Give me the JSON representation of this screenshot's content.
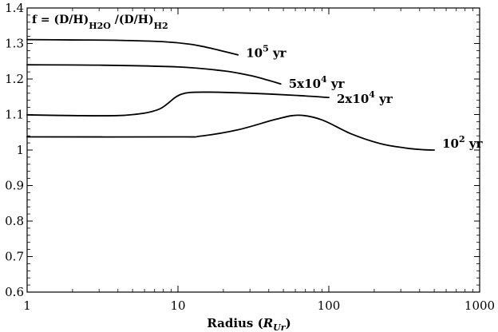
{
  "chart_data": {
    "type": "line",
    "title": "",
    "annotation": {
      "prefix": "f = (D/H)",
      "sub1": "H2O",
      "mid": " /(D/H)",
      "sub2": "H2"
    },
    "xlabel": {
      "text": "Radius (",
      "var": "R",
      "sub": "Ur",
      "close": ")"
    },
    "ylabel": "",
    "xscale": "log",
    "xlim": [
      1,
      1000
    ],
    "ylim": [
      0.6,
      1.4
    ],
    "xticks": [
      {
        "value": 1,
        "label": "1"
      },
      {
        "value": 10,
        "label": "10"
      },
      {
        "value": 100,
        "label": "100"
      },
      {
        "value": 1000,
        "label": "1000"
      }
    ],
    "yticks": [
      {
        "value": 0.6,
        "label": "0.6"
      },
      {
        "value": 0.7,
        "label": "0.7"
      },
      {
        "value": 0.8,
        "label": "0.8"
      },
      {
        "value": 0.9,
        "label": "0.9"
      },
      {
        "value": 1.0,
        "label": "1"
      },
      {
        "value": 1.1,
        "label": "1.1"
      },
      {
        "value": 1.2,
        "label": "1.2"
      },
      {
        "value": 1.3,
        "label": "1.3"
      },
      {
        "value": 1.4,
        "label": "1.4"
      }
    ],
    "grid": false,
    "series": [
      {
        "base": "10",
        "sup": "5",
        "unit": " yr",
        "x": [
          1,
          2,
          4,
          8,
          12,
          16,
          20,
          25
        ],
        "y": [
          1.311,
          1.31,
          1.309,
          1.305,
          1.298,
          1.288,
          1.278,
          1.268
        ]
      },
      {
        "base": "5x10",
        "sup": "4",
        "unit": " yr",
        "x": [
          1,
          3,
          10,
          20,
          30,
          40,
          48
        ],
        "y": [
          1.24,
          1.239,
          1.234,
          1.223,
          1.21,
          1.196,
          1.186
        ]
      },
      {
        "base": "2x10",
        "sup": "4",
        "unit": " yr",
        "x": [
          1,
          2,
          4,
          6,
          7.5,
          8.5,
          9.5,
          10.5,
          12,
          16,
          30,
          60,
          100
        ],
        "y": [
          1.099,
          1.097,
          1.097,
          1.104,
          1.115,
          1.13,
          1.147,
          1.157,
          1.162,
          1.163,
          1.16,
          1.154,
          1.148
        ]
      },
      {
        "base": "10",
        "sup": "2",
        "unit": " yr",
        "x": [
          1,
          10,
          14,
          25,
          45,
          63,
          90,
          140,
          220,
          320,
          420,
          500
        ],
        "y": [
          1.037,
          1.037,
          1.039,
          1.057,
          1.087,
          1.098,
          1.085,
          1.046,
          1.018,
          1.006,
          1.001,
          1.0
        ]
      }
    ]
  }
}
